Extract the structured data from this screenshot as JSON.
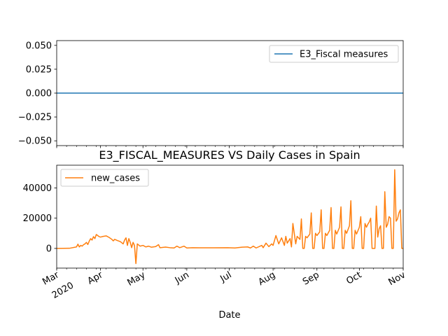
{
  "chart_data": [
    {
      "type": "line",
      "title": "",
      "xlabel": "",
      "ylabel": "",
      "ylim": [
        -0.055,
        0.055
      ],
      "yticks": [
        "−0.050",
        "−0.025",
        "0.000",
        "0.025",
        "0.050"
      ],
      "ytick_values": [
        -0.05,
        -0.025,
        0.0,
        0.025,
        0.05
      ],
      "legend_position": "top-right",
      "grid": false,
      "series": [
        {
          "name": "E3_Fiscal measures",
          "color": "#1f77b4",
          "x_range": [
            "2020-03-01",
            "2020-11-01"
          ],
          "y_constant": 0
        }
      ]
    },
    {
      "type": "line",
      "title": "E3_FISCAL_MEASURES VS Daily Cases in Spain",
      "xlabel": "Date",
      "ylabel": "",
      "ylim": [
        -13000,
        55000
      ],
      "yticks": [
        "0",
        "20000",
        "40000"
      ],
      "ytick_values": [
        0,
        20000,
        40000
      ],
      "xlim": [
        "2020-03-01",
        "2020-11-01"
      ],
      "xticks": [
        {
          "date": "2020-03-01",
          "label": "Mar",
          "label2": "2020"
        },
        {
          "date": "2020-04-01",
          "label": "Apr",
          "label2": ""
        },
        {
          "date": "2020-05-01",
          "label": "May",
          "label2": ""
        },
        {
          "date": "2020-06-01",
          "label": "Jun",
          "label2": ""
        },
        {
          "date": "2020-07-01",
          "label": "Jul",
          "label2": ""
        },
        {
          "date": "2020-08-01",
          "label": "Aug",
          "label2": ""
        },
        {
          "date": "2020-09-01",
          "label": "Sep",
          "label2": ""
        },
        {
          "date": "2020-10-01",
          "label": "Oct",
          "label2": ""
        },
        {
          "date": "2020-11-01",
          "label": "Nov",
          "label2": ""
        }
      ],
      "legend_position": "top-left",
      "grid": false,
      "series": [
        {
          "name": "new_cases",
          "color": "#ff7f0e",
          "points": [
            [
              "2020-03-01",
              0
            ],
            [
              "2020-03-10",
              100
            ],
            [
              "2020-03-15",
              1000
            ],
            [
              "2020-03-16",
              2800
            ],
            [
              "2020-03-17",
              1000
            ],
            [
              "2020-03-18",
              2000
            ],
            [
              "2020-03-19",
              1500
            ],
            [
              "2020-03-20",
              2500
            ],
            [
              "2020-03-21",
              3000
            ],
            [
              "2020-03-22",
              4000
            ],
            [
              "2020-03-23",
              2600
            ],
            [
              "2020-03-24",
              4800
            ],
            [
              "2020-03-25",
              6500
            ],
            [
              "2020-03-26",
              5500
            ],
            [
              "2020-03-27",
              7800
            ],
            [
              "2020-03-28",
              6500
            ],
            [
              "2020-03-29",
              9200
            ],
            [
              "2020-03-30",
              8500
            ],
            [
              "2020-03-31",
              7800
            ],
            [
              "2020-04-01",
              7500
            ],
            [
              "2020-04-03",
              8000
            ],
            [
              "2020-04-05",
              8300
            ],
            [
              "2020-04-07",
              7300
            ],
            [
              "2020-04-09",
              6000
            ],
            [
              "2020-04-10",
              5000
            ],
            [
              "2020-04-11",
              6000
            ],
            [
              "2020-04-13",
              5200
            ],
            [
              "2020-04-15",
              4500
            ],
            [
              "2020-04-17",
              3000
            ],
            [
              "2020-04-18",
              5500
            ],
            [
              "2020-04-19",
              7000
            ],
            [
              "2020-04-20",
              2000
            ],
            [
              "2020-04-21",
              6500
            ],
            [
              "2020-04-22",
              4000
            ],
            [
              "2020-04-23",
              500
            ],
            [
              "2020-04-24",
              4000
            ],
            [
              "2020-04-25",
              2000
            ],
            [
              "2020-04-26",
              -10000
            ],
            [
              "2020-04-27",
              3000
            ],
            [
              "2020-04-29",
              1500
            ],
            [
              "2020-05-01",
              2000
            ],
            [
              "2020-05-03",
              1000
            ],
            [
              "2020-05-05",
              1500
            ],
            [
              "2020-05-07",
              800
            ],
            [
              "2020-05-10",
              1200
            ],
            [
              "2020-05-12",
              2500
            ],
            [
              "2020-05-13",
              500
            ],
            [
              "2020-05-17",
              900
            ],
            [
              "2020-05-20",
              500
            ],
            [
              "2020-05-23",
              300
            ],
            [
              "2020-05-25",
              1500
            ],
            [
              "2020-05-27",
              500
            ],
            [
              "2020-05-30",
              1500
            ],
            [
              "2020-06-01",
              300
            ],
            [
              "2020-06-05",
              500
            ],
            [
              "2020-06-10",
              400
            ],
            [
              "2020-06-20",
              400
            ],
            [
              "2020-06-30",
              500
            ],
            [
              "2020-07-05",
              300
            ],
            [
              "2020-07-10",
              800
            ],
            [
              "2020-07-14",
              1000
            ],
            [
              "2020-07-16",
              300
            ],
            [
              "2020-07-18",
              1500
            ],
            [
              "2020-07-20",
              300
            ],
            [
              "2020-07-24",
              2000
            ],
            [
              "2020-07-25",
              500
            ],
            [
              "2020-07-27",
              3500
            ],
            [
              "2020-07-29",
              1200
            ],
            [
              "2020-07-31",
              3000
            ],
            [
              "2020-08-01",
              2000
            ],
            [
              "2020-08-03",
              8500
            ],
            [
              "2020-08-05",
              3000
            ],
            [
              "2020-08-06",
              5000
            ],
            [
              "2020-08-07",
              7000
            ],
            [
              "2020-08-09",
              2000
            ],
            [
              "2020-08-10",
              8000
            ],
            [
              "2020-08-11",
              3500
            ],
            [
              "2020-08-13",
              6500
            ],
            [
              "2020-08-14",
              1000
            ],
            [
              "2020-08-15",
              16500
            ],
            [
              "2020-08-17",
              3000
            ],
            [
              "2020-08-18",
              8000
            ],
            [
              "2020-08-20",
              6000
            ],
            [
              "2020-08-21",
              19500
            ],
            [
              "2020-08-22",
              0
            ],
            [
              "2020-08-23",
              0
            ],
            [
              "2020-08-24",
              8000
            ],
            [
              "2020-08-25",
              7000
            ],
            [
              "2020-08-27",
              9500
            ],
            [
              "2020-08-28",
              23500
            ],
            [
              "2020-08-29",
              0
            ],
            [
              "2020-08-30",
              0
            ],
            [
              "2020-08-31",
              10000
            ],
            [
              "2020-09-01",
              8500
            ],
            [
              "2020-09-03",
              11000
            ],
            [
              "2020-09-04",
              25500
            ],
            [
              "2020-09-05",
              0
            ],
            [
              "2020-09-06",
              0
            ],
            [
              "2020-09-07",
              10000
            ],
            [
              "2020-09-08",
              8500
            ],
            [
              "2020-09-10",
              12000
            ],
            [
              "2020-09-11",
              27000
            ],
            [
              "2020-09-12",
              0
            ],
            [
              "2020-09-13",
              0
            ],
            [
              "2020-09-14",
              12000
            ],
            [
              "2020-09-15",
              9500
            ],
            [
              "2020-09-17",
              14000
            ],
            [
              "2020-09-18",
              27500
            ],
            [
              "2020-09-19",
              0
            ],
            [
              "2020-09-20",
              0
            ],
            [
              "2020-09-21",
              12000
            ],
            [
              "2020-09-22",
              10000
            ],
            [
              "2020-09-24",
              15000
            ],
            [
              "2020-09-25",
              31500
            ],
            [
              "2020-09-26",
              0
            ],
            [
              "2020-09-27",
              0
            ],
            [
              "2020-09-28",
              12000
            ],
            [
              "2020-09-29",
              9500
            ],
            [
              "2020-10-01",
              14000
            ],
            [
              "2020-10-02",
              21000
            ],
            [
              "2020-10-03",
              0
            ],
            [
              "2020-10-04",
              0
            ],
            [
              "2020-10-05",
              16500
            ],
            [
              "2020-10-06",
              14000
            ],
            [
              "2020-10-07",
              16000
            ],
            [
              "2020-10-08",
              17500
            ],
            [
              "2020-10-09",
              20000
            ],
            [
              "2020-10-10",
              0
            ],
            [
              "2020-10-11",
              0
            ],
            [
              "2020-10-12",
              0
            ],
            [
              "2020-10-13",
              28000
            ],
            [
              "2020-10-14",
              7500
            ],
            [
              "2020-10-15",
              13000
            ],
            [
              "2020-10-16",
              15000
            ],
            [
              "2020-10-17",
              0
            ],
            [
              "2020-10-18",
              0
            ],
            [
              "2020-10-19",
              37500
            ],
            [
              "2020-10-20",
              14000
            ],
            [
              "2020-10-21",
              16000
            ],
            [
              "2020-10-22",
              21000
            ],
            [
              "2020-10-23",
              20000
            ],
            [
              "2020-10-24",
              0
            ],
            [
              "2020-10-25",
              0
            ],
            [
              "2020-10-26",
              52000
            ],
            [
              "2020-10-27",
              18000
            ],
            [
              "2020-10-28",
              19500
            ],
            [
              "2020-10-29",
              23500
            ],
            [
              "2020-10-30",
              25500
            ],
            [
              "2020-10-31",
              0
            ],
            [
              "2020-11-01",
              0
            ]
          ]
        }
      ]
    }
  ]
}
